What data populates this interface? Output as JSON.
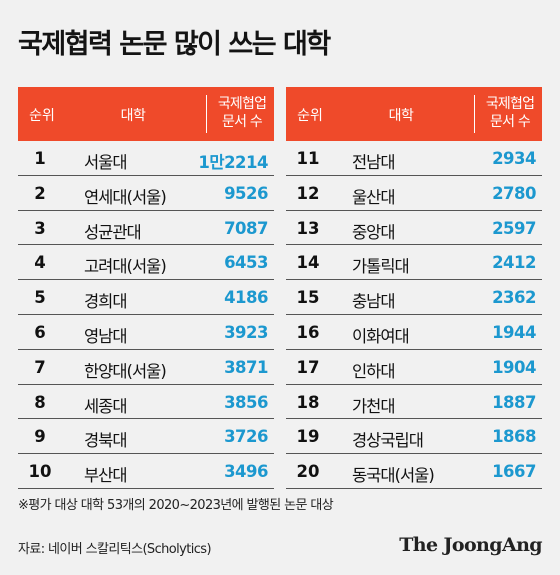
{
  "title": "국제협력 논문 많이 쓰는 대학",
  "headers": {
    "rank": "순위",
    "university": "대학",
    "count_line1": "국제협업",
    "count_line2": "문서 수"
  },
  "left_rows": [
    {
      "rank": "1",
      "name": "서울대",
      "value": "1만2214"
    },
    {
      "rank": "2",
      "name": "연세대(서울)",
      "value": "9526"
    },
    {
      "rank": "3",
      "name": "성균관대",
      "value": "7087"
    },
    {
      "rank": "4",
      "name": "고려대(서울)",
      "value": "6453"
    },
    {
      "rank": "5",
      "name": "경희대",
      "value": "4186"
    },
    {
      "rank": "6",
      "name": "영남대",
      "value": "3923"
    },
    {
      "rank": "7",
      "name": "한양대(서울)",
      "value": "3871"
    },
    {
      "rank": "8",
      "name": "세종대",
      "value": "3856"
    },
    {
      "rank": "9",
      "name": "경북대",
      "value": "3726"
    },
    {
      "rank": "10",
      "name": "부산대",
      "value": "3496"
    }
  ],
  "right_rows": [
    {
      "rank": "11",
      "name": "전남대",
      "value": "2934"
    },
    {
      "rank": "12",
      "name": "울산대",
      "value": "2780"
    },
    {
      "rank": "13",
      "name": "중앙대",
      "value": "2597"
    },
    {
      "rank": "14",
      "name": "가톨릭대",
      "value": "2412"
    },
    {
      "rank": "15",
      "name": "충남대",
      "value": "2362"
    },
    {
      "rank": "16",
      "name": "이화여대",
      "value": "1944"
    },
    {
      "rank": "17",
      "name": "인하대",
      "value": "1904"
    },
    {
      "rank": "18",
      "name": "가천대",
      "value": "1887"
    },
    {
      "rank": "19",
      "name": "경상국립대",
      "value": "1868"
    },
    {
      "rank": "20",
      "name": "동국대(서울)",
      "value": "1667"
    }
  ],
  "footnote": "※평가 대상 대학 53개의 2020~2023년에 발행된 논문 대상",
  "source": "자료: 네이버 스칼리틱스(Scholytics)",
  "brand": "The JoongAng",
  "colors": {
    "header": "#ef4a2a",
    "value": "#1c98cf",
    "background": "#f1f1f1"
  }
}
